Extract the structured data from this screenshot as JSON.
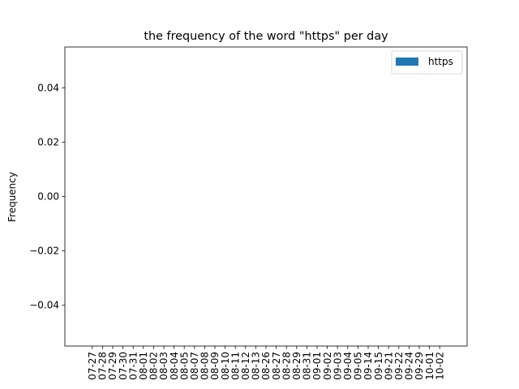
{
  "chart_data": {
    "type": "bar",
    "title": "the frequency of the word \"https\" per day",
    "xlabel": "",
    "ylabel": "Frequency",
    "categories": [
      "07-27",
      "07-28",
      "07-29",
      "07-30",
      "07-31",
      "08-01",
      "08-02",
      "08-03",
      "08-04",
      "08-05",
      "08-07",
      "08-08",
      "08-09",
      "08-10",
      "08-11",
      "08-12",
      "08-13",
      "08-26",
      "08-27",
      "08-28",
      "08-29",
      "08-31",
      "09-01",
      "09-02",
      "09-03",
      "09-04",
      "09-05",
      "09-14",
      "09-15",
      "09-21",
      "09-22",
      "09-24",
      "09-29",
      "10-01",
      "10-02"
    ],
    "series": [
      {
        "name": "https",
        "values": [
          0,
          0,
          0,
          0,
          0,
          0,
          0,
          0,
          0,
          0,
          0,
          0,
          0,
          0,
          0,
          0,
          0,
          0,
          0,
          0,
          0,
          0,
          0,
          0,
          0,
          0,
          0,
          0,
          0,
          0,
          0,
          0,
          0,
          0,
          0
        ]
      }
    ],
    "ylim": [
      -0.055,
      0.055
    ],
    "yticks": [
      -0.04,
      -0.02,
      0.0,
      0.02,
      0.04
    ],
    "ytick_labels": [
      "−0.04",
      "−0.02",
      "0.00",
      "0.02",
      "0.04"
    ],
    "grid": false,
    "legend_position": "top-right",
    "series_color": "#1f77b4"
  }
}
